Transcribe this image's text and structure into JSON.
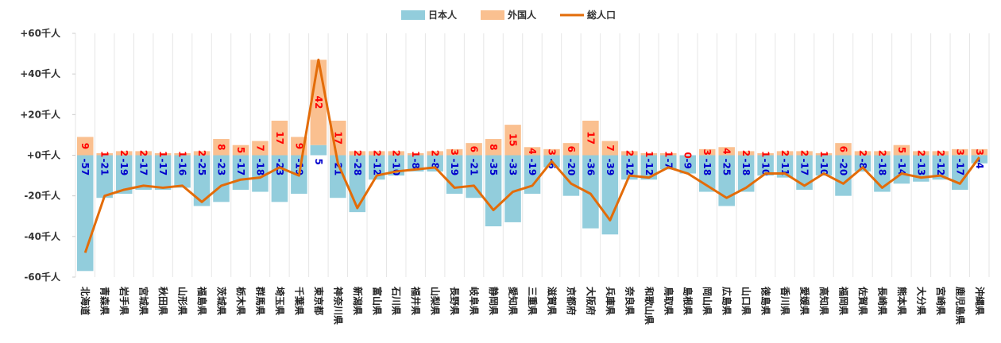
{
  "chart_data": {
    "type": "bar-line",
    "categories": [
      "北海道",
      "青森県",
      "岩手県",
      "宮城県",
      "秋田県",
      "山形県",
      "福島県",
      "茨城県",
      "栃木県",
      "群馬県",
      "埼玉県",
      "千葉県",
      "東京都",
      "神奈川県",
      "新潟県",
      "富山県",
      "石川県",
      "福井県",
      "山梨県",
      "長野県",
      "岐阜県",
      "静岡県",
      "愛知県",
      "三重県",
      "滋賀県",
      "京都府",
      "大阪府",
      "兵庫県",
      "奈良県",
      "和歌山県",
      "鳥取県",
      "島根県",
      "岡山県",
      "広島県",
      "山口県",
      "徳島県",
      "香川県",
      "愛媛県",
      "高知県",
      "福岡県",
      "佐賀県",
      "長崎県",
      "熊本県",
      "大分県",
      "宮崎県",
      "鹿児島県",
      "沖縄県"
    ],
    "series": [
      {
        "name": "日本人",
        "color": "#92cddc",
        "kind": "bar",
        "label_color": "#0000cc",
        "values": [
          -57,
          -21,
          -19,
          -17,
          -17,
          -16,
          -25,
          -23,
          -17,
          -18,
          -23,
          -19,
          5,
          -21,
          -28,
          -12,
          -10,
          -8,
          -8,
          -19,
          -21,
          -35,
          -33,
          -19,
          -6,
          -20,
          -36,
          -39,
          -12,
          -12,
          -7,
          -9,
          -18,
          -25,
          -18,
          -10,
          -11,
          -17,
          -10,
          -20,
          -8,
          -18,
          -14,
          -13,
          -12,
          -17,
          -4
        ]
      },
      {
        "name": "外国人",
        "color": "#fac090",
        "kind": "bar",
        "label_color": "#ff0000",
        "values": [
          9,
          1,
          2,
          2,
          1,
          1,
          2,
          8,
          5,
          7,
          17,
          9,
          42,
          17,
          2,
          2,
          2,
          1,
          2,
          3,
          6,
          8,
          15,
          4,
          3,
          6,
          17,
          7,
          2,
          1,
          1,
          0,
          3,
          4,
          2,
          1,
          2,
          2,
          1,
          6,
          2,
          2,
          5,
          2,
          2,
          3,
          3
        ]
      },
      {
        "name": "総人口",
        "color": "#e36c09",
        "kind": "line",
        "values": [
          -48,
          -20,
          -17,
          -15,
          -16,
          -15,
          -23,
          -15,
          -12,
          -11,
          -6,
          -10,
          47,
          -4,
          -26,
          -10,
          -8,
          -7,
          -6,
          -16,
          -15,
          -27,
          -18,
          -15,
          -3,
          -14,
          -19,
          -32,
          -10,
          -11,
          -6,
          -9,
          -15,
          -21,
          -16,
          -9,
          -9,
          -15,
          -9,
          -14,
          -6,
          -16,
          -9,
          -11,
          -10,
          -14,
          -1
        ]
      }
    ],
    "ylim": [
      -60,
      60
    ],
    "yticks": [
      {
        "value": 60,
        "label": "+60千人"
      },
      {
        "value": 40,
        "label": "+40千人"
      },
      {
        "value": 20,
        "label": "+20千人"
      },
      {
        "value": 0,
        "label": "+0千人"
      },
      {
        "value": -20,
        "label": "-20千人"
      },
      {
        "value": -40,
        "label": "-40千人"
      },
      {
        "value": -60,
        "label": "-60千人"
      }
    ],
    "legend": "top"
  }
}
